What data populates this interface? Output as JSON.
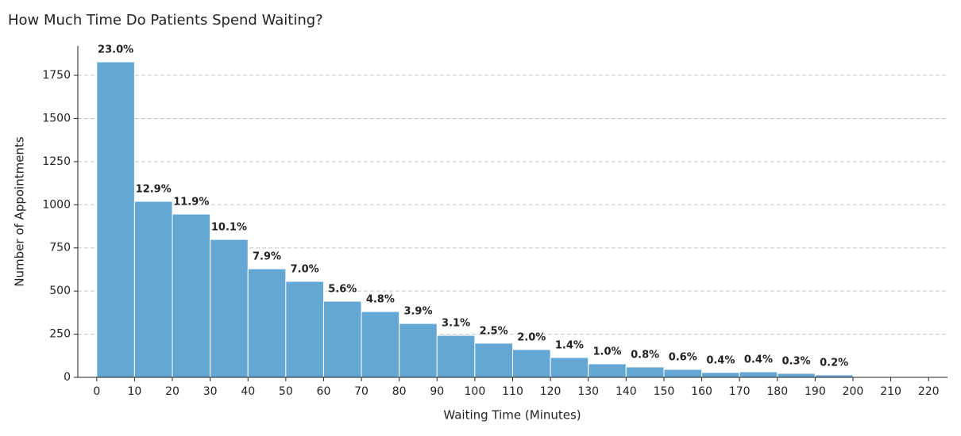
{
  "chart_data": {
    "type": "histogram",
    "title": "How Much Time Do Patients Spend Waiting?",
    "xlabel": "Waiting Time (Minutes)",
    "ylabel": "Number of Appointments",
    "bins": [
      0,
      10,
      20,
      30,
      40,
      50,
      60,
      70,
      80,
      90,
      100,
      110,
      120,
      130,
      140,
      150,
      160,
      170,
      180,
      190,
      200,
      210,
      220
    ],
    "values": [
      1828,
      1020,
      946,
      799,
      629,
      556,
      441,
      381,
      312,
      243,
      198,
      161,
      115,
      78,
      60,
      46,
      28,
      32,
      23,
      14,
      1,
      0
    ],
    "percentages": [
      23.0,
      12.9,
      11.9,
      10.1,
      7.9,
      7.0,
      5.6,
      4.8,
      3.9,
      3.1,
      2.5,
      2.0,
      1.4,
      1.0,
      0.8,
      0.6,
      0.4,
      0.4,
      0.3,
      0.2,
      null,
      null
    ],
    "percentage_labels": [
      "23.0%",
      "12.9%",
      "11.9%",
      "10.1%",
      "7.9%",
      "7.0%",
      "5.6%",
      "4.8%",
      "3.9%",
      "3.1%",
      "2.5%",
      "2.0%",
      "1.4%",
      "1.0%",
      "0.8%",
      "0.6%",
      "0.4%",
      "0.4%",
      "0.3%",
      "0.2%",
      null,
      null
    ],
    "color": "#64a6d4",
    "xlim": [
      -5,
      225
    ],
    "ylim": [
      0,
      1920
    ],
    "xticks": [
      0,
      10,
      20,
      30,
      40,
      50,
      60,
      70,
      80,
      90,
      100,
      110,
      120,
      130,
      140,
      150,
      160,
      170,
      180,
      190,
      200,
      210,
      220
    ],
    "yticks": [
      0,
      250,
      500,
      750,
      1000,
      1250,
      1500,
      1750
    ],
    "grid": true
  }
}
